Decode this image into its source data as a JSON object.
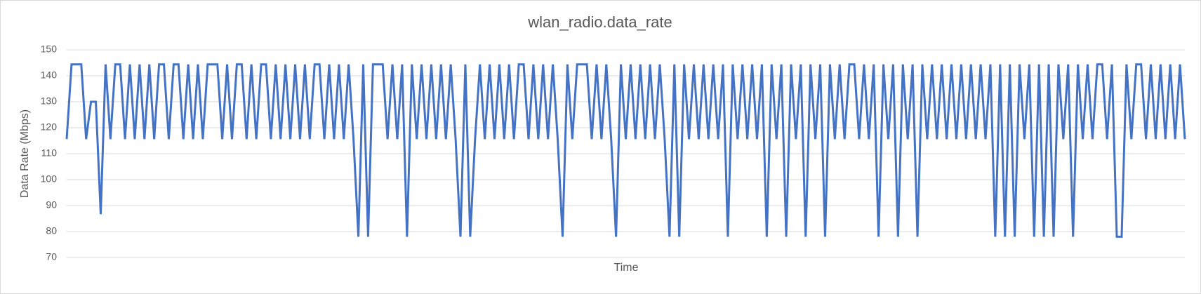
{
  "chart_data": {
    "type": "line",
    "title": "wlan_radio.data_rate",
    "x_label": "Time",
    "y_label": "Data Rate (Mbps)",
    "color": "#4472c4",
    "ylim": [
      70,
      150
    ],
    "yticks": [
      70,
      80,
      90,
      100,
      110,
      120,
      130,
      140,
      150
    ],
    "grid": true,
    "values": [
      115.6,
      144.4,
      144.4,
      144.4,
      115.6,
      130,
      130,
      86.7,
      144.4,
      115.6,
      144.4,
      144.4,
      115.6,
      144.4,
      115.6,
      144.4,
      115.6,
      144.4,
      115.6,
      144.4,
      144.4,
      115.6,
      144.4,
      144.4,
      115.6,
      144.4,
      115.6,
      144.4,
      115.6,
      144.4,
      144.4,
      144.4,
      115.6,
      144.4,
      115.6,
      144.4,
      144.4,
      115.6,
      144.4,
      115.6,
      144.4,
      144.4,
      115.6,
      144.4,
      115.6,
      144.4,
      115.6,
      144.4,
      115.6,
      144.4,
      115.6,
      144.4,
      144.4,
      115.6,
      144.4,
      115.6,
      144.4,
      115.6,
      144.4,
      115.6,
      78,
      144.4,
      78,
      144.4,
      144.4,
      144.4,
      115.6,
      144.4,
      115.6,
      144.4,
      78,
      144.4,
      115.6,
      144.4,
      115.6,
      144.4,
      115.6,
      144.4,
      115.6,
      144.4,
      115.6,
      78,
      144.4,
      78,
      115.6,
      144.4,
      115.6,
      144.4,
      115.6,
      144.4,
      115.6,
      144.4,
      115.6,
      144.4,
      144.4,
      115.6,
      144.4,
      115.6,
      144.4,
      115.6,
      144.4,
      115.6,
      78,
      144.4,
      115.6,
      144.4,
      144.4,
      144.4,
      115.6,
      144.4,
      115.6,
      144.4,
      115.6,
      78,
      144.4,
      115.6,
      144.4,
      115.6,
      144.4,
      115.6,
      144.4,
      115.6,
      144.4,
      115.6,
      78,
      144.4,
      78,
      144.4,
      115.6,
      144.4,
      115.6,
      144.4,
      115.6,
      144.4,
      115.6,
      144.4,
      78,
      144.4,
      115.6,
      144.4,
      115.6,
      144.4,
      115.6,
      144.4,
      78,
      144.4,
      115.6,
      144.4,
      78,
      144.4,
      115.6,
      144.4,
      78,
      144.4,
      115.6,
      144.4,
      78,
      144.4,
      115.6,
      144.4,
      115.6,
      144.4,
      144.4,
      115.6,
      144.4,
      115.6,
      144.4,
      78,
      144.4,
      115.6,
      144.4,
      78,
      144.4,
      115.6,
      144.4,
      78,
      144.4,
      115.6,
      144.4,
      115.6,
      144.4,
      115.6,
      144.4,
      115.6,
      144.4,
      115.6,
      144.4,
      115.6,
      144.4,
      115.6,
      144.4,
      78,
      144.4,
      78,
      144.4,
      78,
      144.4,
      115.6,
      144.4,
      78,
      144.4,
      78,
      144.4,
      78,
      144.4,
      115.6,
      144.4,
      78,
      144.4,
      115.6,
      144.4,
      115.6,
      144.4,
      144.4,
      115.6,
      144.4,
      78,
      78,
      144.4,
      115.6,
      144.4,
      144.4,
      115.6,
      144.4,
      115.6,
      144.4,
      115.6,
      144.4,
      115.6,
      144.4,
      115.6
    ]
  }
}
